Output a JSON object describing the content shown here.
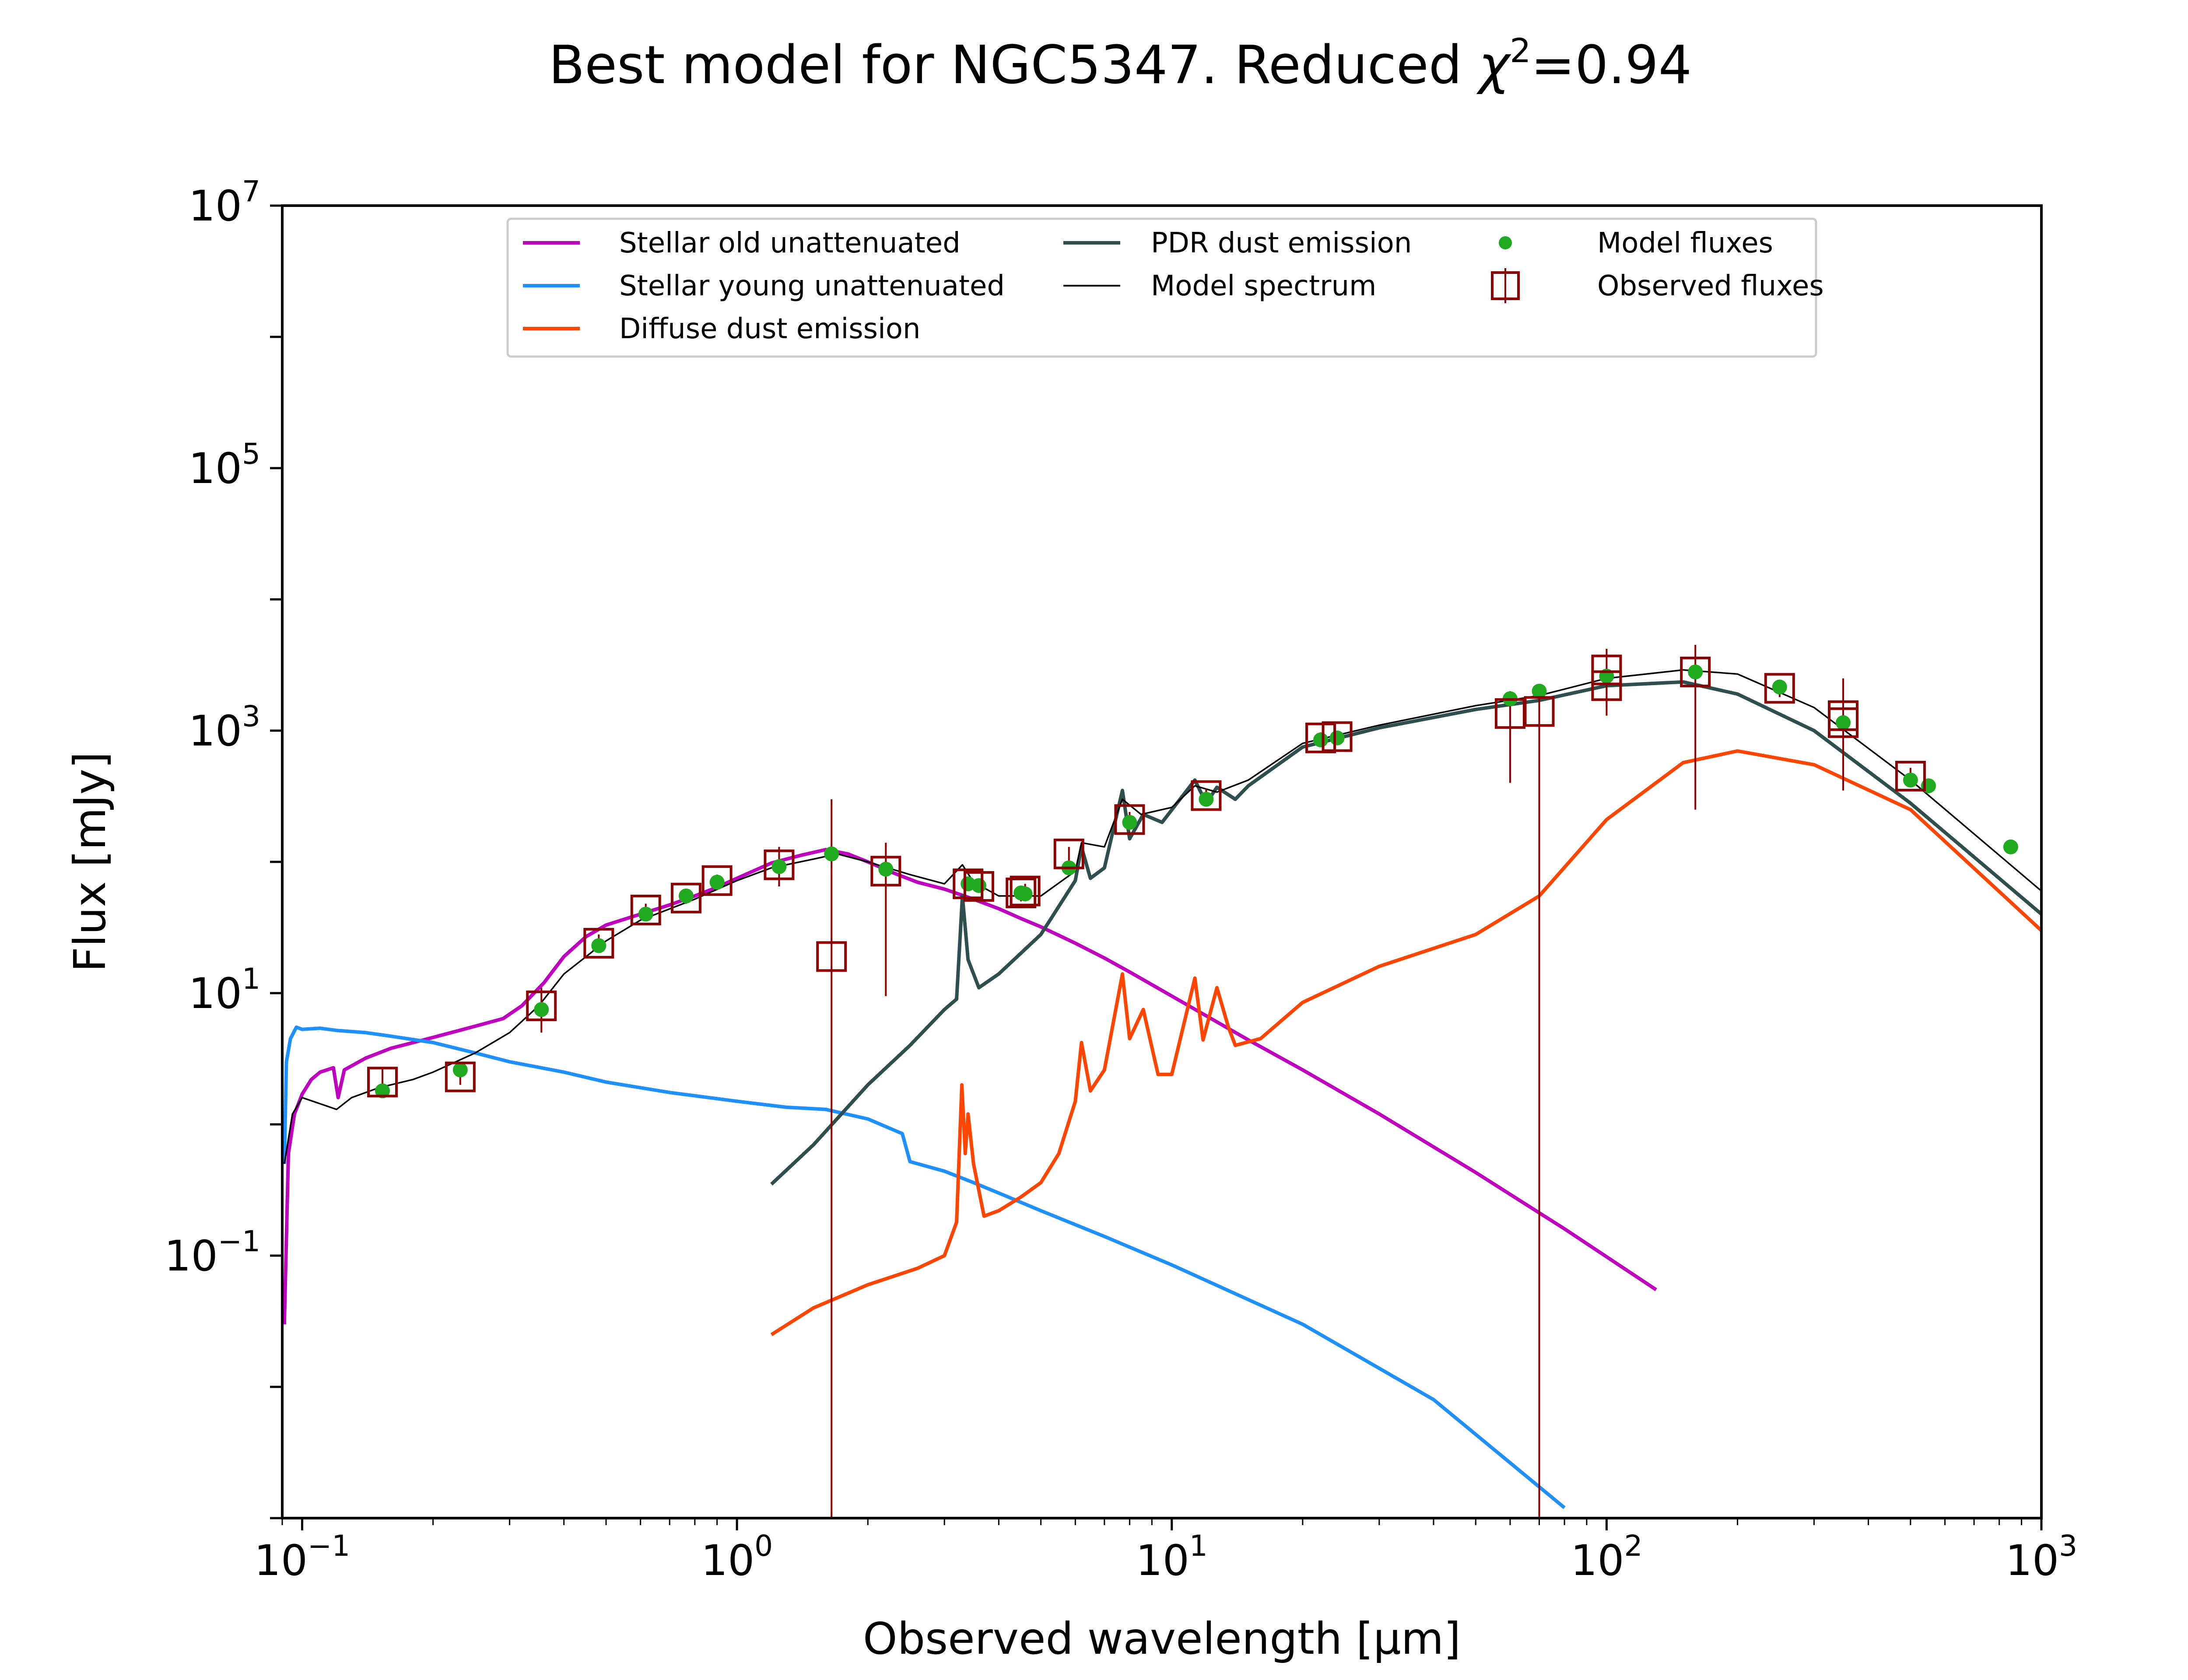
{
  "chart_data": {
    "type": "line",
    "title": "Best model for NGC5347. Reduced χ²=0.94",
    "title_parts": {
      "prefix": "Best model for NGC5347. Reduced ",
      "symbol": "χ",
      "exponent": "2",
      "suffix": "=0.94"
    },
    "xlabel": "Observed wavelength [μm]",
    "ylabel": "Flux [mJy]",
    "x_scale": "log",
    "y_scale": "log",
    "xlim": [
      0.09,
      1000
    ],
    "ylim": [
      0.001,
      10000000
    ],
    "x_ticks": [
      {
        "value": 0.1,
        "base": "10",
        "exp": "−1"
      },
      {
        "value": 1,
        "base": "10",
        "exp": "0"
      },
      {
        "value": 10,
        "base": "10",
        "exp": "1"
      },
      {
        "value": 100,
        "base": "10",
        "exp": "2"
      },
      {
        "value": 1000,
        "base": "10",
        "exp": "3"
      }
    ],
    "y_ticks": [
      {
        "value": 0.1,
        "base": "10",
        "exp": "−1"
      },
      {
        "value": 10,
        "base": "10",
        "exp": "1"
      },
      {
        "value": 1000,
        "base": "10",
        "exp": "3"
      },
      {
        "value": 100000,
        "base": "10",
        "exp": "5"
      },
      {
        "value": 10000000,
        "base": "10",
        "exp": "7"
      }
    ],
    "grid": false,
    "legend_position": "top-center",
    "series": [
      {
        "name": "Stellar old unattenuated",
        "kind": "line",
        "color": "#bf00bf",
        "points": [
          [
            0.091,
            0.03
          ],
          [
            0.093,
            0.6
          ],
          [
            0.096,
            1.2
          ],
          [
            0.1,
            1.7
          ],
          [
            0.105,
            2.2
          ],
          [
            0.11,
            2.5
          ],
          [
            0.118,
            2.7
          ],
          [
            0.121,
            1.6
          ],
          [
            0.125,
            2.6
          ],
          [
            0.14,
            3.2
          ],
          [
            0.16,
            3.8
          ],
          [
            0.18,
            4.2
          ],
          [
            0.2,
            4.6
          ],
          [
            0.23,
            5.2
          ],
          [
            0.26,
            5.8
          ],
          [
            0.29,
            6.4
          ],
          [
            0.32,
            8
          ],
          [
            0.36,
            12
          ],
          [
            0.4,
            19
          ],
          [
            0.45,
            27
          ],
          [
            0.5,
            33
          ],
          [
            0.6,
            40
          ],
          [
            0.7,
            47
          ],
          [
            0.8,
            55
          ],
          [
            0.9,
            64
          ],
          [
            1.0,
            75
          ],
          [
            1.2,
            98
          ],
          [
            1.4,
            112
          ],
          [
            1.6,
            124
          ],
          [
            1.8,
            115
          ],
          [
            2.0,
            100
          ],
          [
            2.3,
            82
          ],
          [
            2.6,
            70
          ],
          [
            3.0,
            62
          ],
          [
            3.5,
            52
          ],
          [
            4.0,
            44
          ],
          [
            4.5,
            37
          ],
          [
            5.0,
            32
          ],
          [
            6.0,
            24
          ],
          [
            7.0,
            18.5
          ],
          [
            8.0,
            14.5
          ],
          [
            10.0,
            9.5
          ],
          [
            15.0,
            4.4
          ],
          [
            20.0,
            2.6
          ],
          [
            30.0,
            1.2
          ],
          [
            50.0,
            0.43
          ],
          [
            80.0,
            0.16
          ],
          [
            130.0,
            0.055
          ]
        ]
      },
      {
        "name": "Stellar young unattenuated",
        "kind": "line",
        "color": "#1e90ff",
        "points": [
          [
            0.091,
            0.5
          ],
          [
            0.092,
            3.0
          ],
          [
            0.094,
            4.5
          ],
          [
            0.097,
            5.5
          ],
          [
            0.1,
            5.3
          ],
          [
            0.11,
            5.4
          ],
          [
            0.12,
            5.2
          ],
          [
            0.14,
            5.0
          ],
          [
            0.16,
            4.7
          ],
          [
            0.2,
            4.2
          ],
          [
            0.25,
            3.5
          ],
          [
            0.3,
            3.0
          ],
          [
            0.4,
            2.5
          ],
          [
            0.5,
            2.1
          ],
          [
            0.7,
            1.75
          ],
          [
            1.0,
            1.5
          ],
          [
            1.3,
            1.35
          ],
          [
            1.6,
            1.3
          ],
          [
            2.0,
            1.1
          ],
          [
            2.4,
            0.85
          ],
          [
            2.5,
            0.52
          ],
          [
            3.0,
            0.44
          ],
          [
            3.5,
            0.36
          ],
          [
            4.0,
            0.3
          ],
          [
            5.0,
            0.22
          ],
          [
            7.0,
            0.14
          ],
          [
            10.0,
            0.085
          ],
          [
            20.0,
            0.03
          ],
          [
            40.0,
            0.008
          ],
          [
            80.0,
            0.0012
          ]
        ]
      },
      {
        "name": "Diffuse dust emission",
        "kind": "line",
        "color": "#ff4500",
        "points": [
          [
            1.2,
            0.025
          ],
          [
            1.5,
            0.04
          ],
          [
            2.0,
            0.06
          ],
          [
            2.6,
            0.08
          ],
          [
            3.0,
            0.1
          ],
          [
            3.2,
            0.18
          ],
          [
            3.29,
            2.0
          ],
          [
            3.35,
            0.6
          ],
          [
            3.4,
            1.2
          ],
          [
            3.5,
            0.5
          ],
          [
            3.7,
            0.2
          ],
          [
            4.0,
            0.22
          ],
          [
            4.5,
            0.28
          ],
          [
            5.0,
            0.36
          ],
          [
            5.5,
            0.6
          ],
          [
            6.0,
            1.5
          ],
          [
            6.2,
            4.2
          ],
          [
            6.5,
            1.8
          ],
          [
            7.0,
            2.6
          ],
          [
            7.7,
            14
          ],
          [
            8.0,
            4.5
          ],
          [
            8.6,
            7.5
          ],
          [
            9.3,
            2.4
          ],
          [
            10.0,
            2.4
          ],
          [
            11.3,
            13
          ],
          [
            11.8,
            4.4
          ],
          [
            12.7,
            11
          ],
          [
            13.5,
            5.5
          ],
          [
            14.0,
            4.0
          ],
          [
            16.0,
            4.5
          ],
          [
            20.0,
            8.5
          ],
          [
            30.0,
            16
          ],
          [
            50.0,
            28
          ],
          [
            70.0,
            55
          ],
          [
            100.0,
            210
          ],
          [
            150.0,
            570
          ],
          [
            200.0,
            700
          ],
          [
            300.0,
            550
          ],
          [
            500.0,
            250
          ],
          [
            1000.0,
            30
          ]
        ]
      },
      {
        "name": "PDR dust emission",
        "kind": "line",
        "color": "#2f4f4f",
        "points": [
          [
            1.2,
            0.35
          ],
          [
            1.5,
            0.7
          ],
          [
            2.0,
            2.0
          ],
          [
            2.5,
            4.0
          ],
          [
            3.0,
            7.5
          ],
          [
            3.2,
            9
          ],
          [
            3.3,
            55
          ],
          [
            3.4,
            18
          ],
          [
            3.6,
            11
          ],
          [
            4.0,
            14
          ],
          [
            5.0,
            28
          ],
          [
            6.0,
            72
          ],
          [
            6.2,
            130
          ],
          [
            6.5,
            75
          ],
          [
            7.0,
            90
          ],
          [
            7.7,
            350
          ],
          [
            8.0,
            150
          ],
          [
            8.6,
            230
          ],
          [
            9.5,
            200
          ],
          [
            11.3,
            420
          ],
          [
            12.0,
            280
          ],
          [
            12.7,
            370
          ],
          [
            14.0,
            300
          ],
          [
            15.0,
            380
          ],
          [
            20.0,
            750
          ],
          [
            30.0,
            1050
          ],
          [
            50.0,
            1450
          ],
          [
            70.0,
            1700
          ],
          [
            100.0,
            2200
          ],
          [
            150.0,
            2350
          ],
          [
            200.0,
            1900
          ],
          [
            300.0,
            1000
          ],
          [
            500.0,
            280
          ],
          [
            1000.0,
            40
          ]
        ]
      },
      {
        "name": "Model spectrum",
        "kind": "line",
        "color": "#000000",
        "points": [
          [
            0.091,
            0.5
          ],
          [
            0.095,
            1.2
          ],
          [
            0.1,
            1.6
          ],
          [
            0.12,
            1.3
          ],
          [
            0.13,
            1.6
          ],
          [
            0.15,
            1.9
          ],
          [
            0.18,
            2.2
          ],
          [
            0.2,
            2.5
          ],
          [
            0.25,
            3.5
          ],
          [
            0.3,
            5
          ],
          [
            0.35,
            8
          ],
          [
            0.4,
            14
          ],
          [
            0.5,
            25
          ],
          [
            0.6,
            36
          ],
          [
            0.8,
            52
          ],
          [
            1.0,
            72
          ],
          [
            1.2,
            90
          ],
          [
            1.5,
            105
          ],
          [
            1.7,
            115
          ],
          [
            2.0,
            100
          ],
          [
            2.5,
            80
          ],
          [
            3.0,
            68
          ],
          [
            3.3,
            95
          ],
          [
            3.5,
            70
          ],
          [
            4.0,
            55
          ],
          [
            5.0,
            55
          ],
          [
            6.0,
            85
          ],
          [
            6.2,
            140
          ],
          [
            7.0,
            130
          ],
          [
            7.7,
            300
          ],
          [
            8.5,
            230
          ],
          [
            10.0,
            260
          ],
          [
            11.3,
            380
          ],
          [
            12.7,
            340
          ],
          [
            15.0,
            420
          ],
          [
            20.0,
            800
          ],
          [
            30.0,
            1100
          ],
          [
            50.0,
            1550
          ],
          [
            70.0,
            1850
          ],
          [
            100.0,
            2500
          ],
          [
            150.0,
            2900
          ],
          [
            200.0,
            2700
          ],
          [
            300.0,
            1500
          ],
          [
            500.0,
            420
          ],
          [
            1000.0,
            60
          ]
        ]
      },
      {
        "name": "Model fluxes",
        "kind": "scatter",
        "color": "#1faa1f",
        "points": [
          [
            0.153,
            1.8
          ],
          [
            0.231,
            2.6
          ],
          [
            0.355,
            7.5
          ],
          [
            0.481,
            23
          ],
          [
            0.617,
            40
          ],
          [
            0.764,
            55
          ],
          [
            0.9,
            70
          ],
          [
            1.25,
            92
          ],
          [
            1.65,
            115
          ],
          [
            2.2,
            88
          ],
          [
            3.4,
            68
          ],
          [
            3.6,
            66
          ],
          [
            4.5,
            58
          ],
          [
            4.6,
            57
          ],
          [
            5.8,
            90
          ],
          [
            8.0,
            200
          ],
          [
            12.0,
            300
          ],
          [
            22.0,
            850
          ],
          [
            24.0,
            880
          ],
          [
            60.0,
            1750
          ],
          [
            70.0,
            2000
          ],
          [
            100.0,
            2600
          ],
          [
            160.0,
            2800
          ],
          [
            250.0,
            2150
          ],
          [
            350.0,
            1150
          ],
          [
            500.0,
            420
          ],
          [
            550.0,
            380
          ],
          [
            850.0,
            130
          ]
        ]
      },
      {
        "name": "Observed fluxes",
        "kind": "errorbar",
        "color": "#8b0000",
        "points": [
          [
            0.153,
            2.1,
            1.7,
            2.7
          ],
          [
            0.231,
            2.3,
            2.0,
            2.7
          ],
          [
            0.355,
            8.0,
            5.0,
            11
          ],
          [
            0.481,
            24,
            21,
            28
          ],
          [
            0.617,
            43,
            38,
            48
          ],
          [
            0.764,
            53,
            48,
            60
          ],
          [
            0.9,
            72,
            64,
            80
          ],
          [
            1.25,
            95,
            65,
            130
          ],
          [
            1.65,
            19,
            0.001,
            300
          ],
          [
            2.2,
            85,
            9.5,
            140
          ],
          [
            3.4,
            68,
            62,
            75
          ],
          [
            3.6,
            65,
            59,
            72
          ],
          [
            4.5,
            58,
            50,
            66
          ],
          [
            4.6,
            60,
            52,
            68
          ],
          [
            5.8,
            115,
            100,
            130
          ],
          [
            8.0,
            210,
            180,
            240
          ],
          [
            12.0,
            320,
            280,
            360
          ],
          [
            22.0,
            880,
            790,
            970
          ],
          [
            24.0,
            900,
            810,
            990
          ],
          [
            60.0,
            1350,
            400,
            2000
          ],
          [
            70.0,
            1400,
            0.001,
            2100
          ],
          [
            100.0,
            2900,
            1500,
            4200
          ],
          [
            100.0,
            2200,
            1300,
            3000
          ],
          [
            160.0,
            2800,
            250,
            4500
          ],
          [
            250.0,
            2100,
            1800,
            2400
          ],
          [
            350.0,
            1300,
            350,
            2500
          ],
          [
            350.0,
            1150,
            600,
            1700
          ],
          [
            500.0,
            450,
            400,
            520
          ]
        ]
      }
    ],
    "legend": [
      {
        "name": "Stellar old unattenuated",
        "color": "#bf00bf",
        "kind": "line"
      },
      {
        "name": "Stellar young unattenuated",
        "color": "#1e90ff",
        "kind": "line"
      },
      {
        "name": "Diffuse dust emission",
        "color": "#ff4500",
        "kind": "line"
      },
      {
        "name": "PDR dust emission",
        "color": "#2f4f4f",
        "kind": "line"
      },
      {
        "name": "Model spectrum",
        "color": "#000000",
        "kind": "thinline"
      },
      {
        "name": "Model fluxes",
        "color": "#1faa1f",
        "kind": "dot"
      },
      {
        "name": "Observed fluxes",
        "color": "#8b0000",
        "kind": "square"
      }
    ]
  }
}
